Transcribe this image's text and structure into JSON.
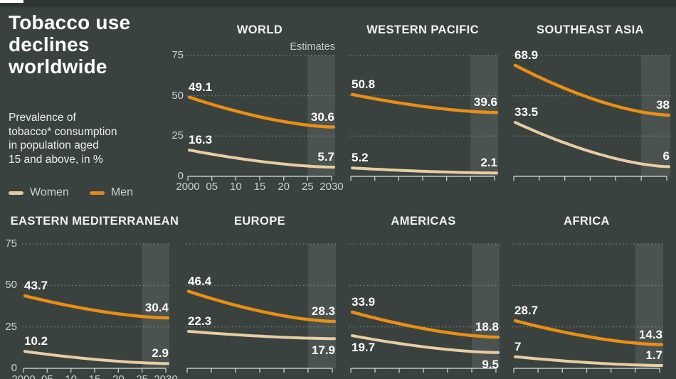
{
  "header": {
    "title_lines": [
      "Tobacco use",
      "declines",
      "worldwide"
    ],
    "subtitle_lines": [
      "Prevalence of",
      "tobacco* consumption",
      "in population aged",
      "15 and above, in %"
    ],
    "legend": [
      {
        "label": "Women",
        "color": "#e7c899"
      },
      {
        "label": "Men",
        "color": "#e3891b"
      }
    ]
  },
  "colors": {
    "background": "#3a4240",
    "top_bar": "#2e3634",
    "men_line": "#ea8f14",
    "women_line": "#e9cda2",
    "estimates_band": "rgba(255,255,255,0.09)",
    "gridline": "#9aa09c",
    "axis": "#c2c7c4",
    "value_label": "#fdfdfd"
  },
  "chart_data": {
    "type": "line",
    "x": [
      2000,
      2005,
      2010,
      2015,
      2020,
      2025,
      2030
    ],
    "x_tick_labels": [
      "2000",
      "05",
      "10",
      "15",
      "20",
      "25",
      "2030"
    ],
    "y_ticks": [
      0,
      25,
      50,
      75
    ],
    "y_tick_display": [
      "75",
      "50",
      "25",
      "0"
    ],
    "ylim": [
      0,
      75
    ],
    "grid": "dotted",
    "estimates_label": "Estimates",
    "estimates_range": [
      2025,
      2030
    ],
    "series_names": [
      "Women",
      "Men"
    ],
    "panels": [
      {
        "title": "WORLD",
        "men": {
          "start": 49.1,
          "end": 30.6,
          "start_label": "49.1",
          "end_label": "30.6"
        },
        "women": {
          "start": 16.3,
          "end": 5.7,
          "start_label": "16.3",
          "end_label": "5.7"
        }
      },
      {
        "title": "WESTERN PACIFIC",
        "men": {
          "start": 50.8,
          "end": 39.6,
          "start_label": "50.8",
          "end_label": "39.6"
        },
        "women": {
          "start": 5.2,
          "end": 2.1,
          "start_label": "5.2",
          "end_label": "2.1"
        }
      },
      {
        "title": "SOUTHEAST ASIA",
        "men": {
          "start": 68.9,
          "end": 38,
          "start_label": "68.9",
          "end_label": "38"
        },
        "women": {
          "start": 33.5,
          "end": 6,
          "start_label": "33.5",
          "end_label": "6"
        }
      },
      {
        "title": "EASTERN MEDITERRANEAN",
        "men": {
          "start": 43.7,
          "end": 30.4,
          "start_label": "43.7",
          "end_label": "30.4"
        },
        "women": {
          "start": 10.2,
          "end": 2.9,
          "start_label": "10.2",
          "end_label": "2.9"
        }
      },
      {
        "title": "EUROPE",
        "men": {
          "start": 46.4,
          "end": 28.3,
          "start_label": "46.4",
          "end_label": "28.3"
        },
        "women": {
          "start": 22.3,
          "end": 17.9,
          "start_label": "22.3",
          "end_label": "17.9"
        }
      },
      {
        "title": "AMERICAS",
        "men": {
          "start": 33.9,
          "end": 18.8,
          "start_label": "33.9",
          "end_label": "18.8"
        },
        "women": {
          "start": 19.7,
          "end": 9.5,
          "start_label": "19.7",
          "end_label": "9.5"
        }
      },
      {
        "title": "AFRICA",
        "men": {
          "start": 28.7,
          "end": 14.3,
          "start_label": "28.7",
          "end_label": "14.3"
        },
        "women": {
          "start": 7,
          "end": 1.7,
          "start_label": "7",
          "end_label": "1.7"
        }
      }
    ]
  }
}
